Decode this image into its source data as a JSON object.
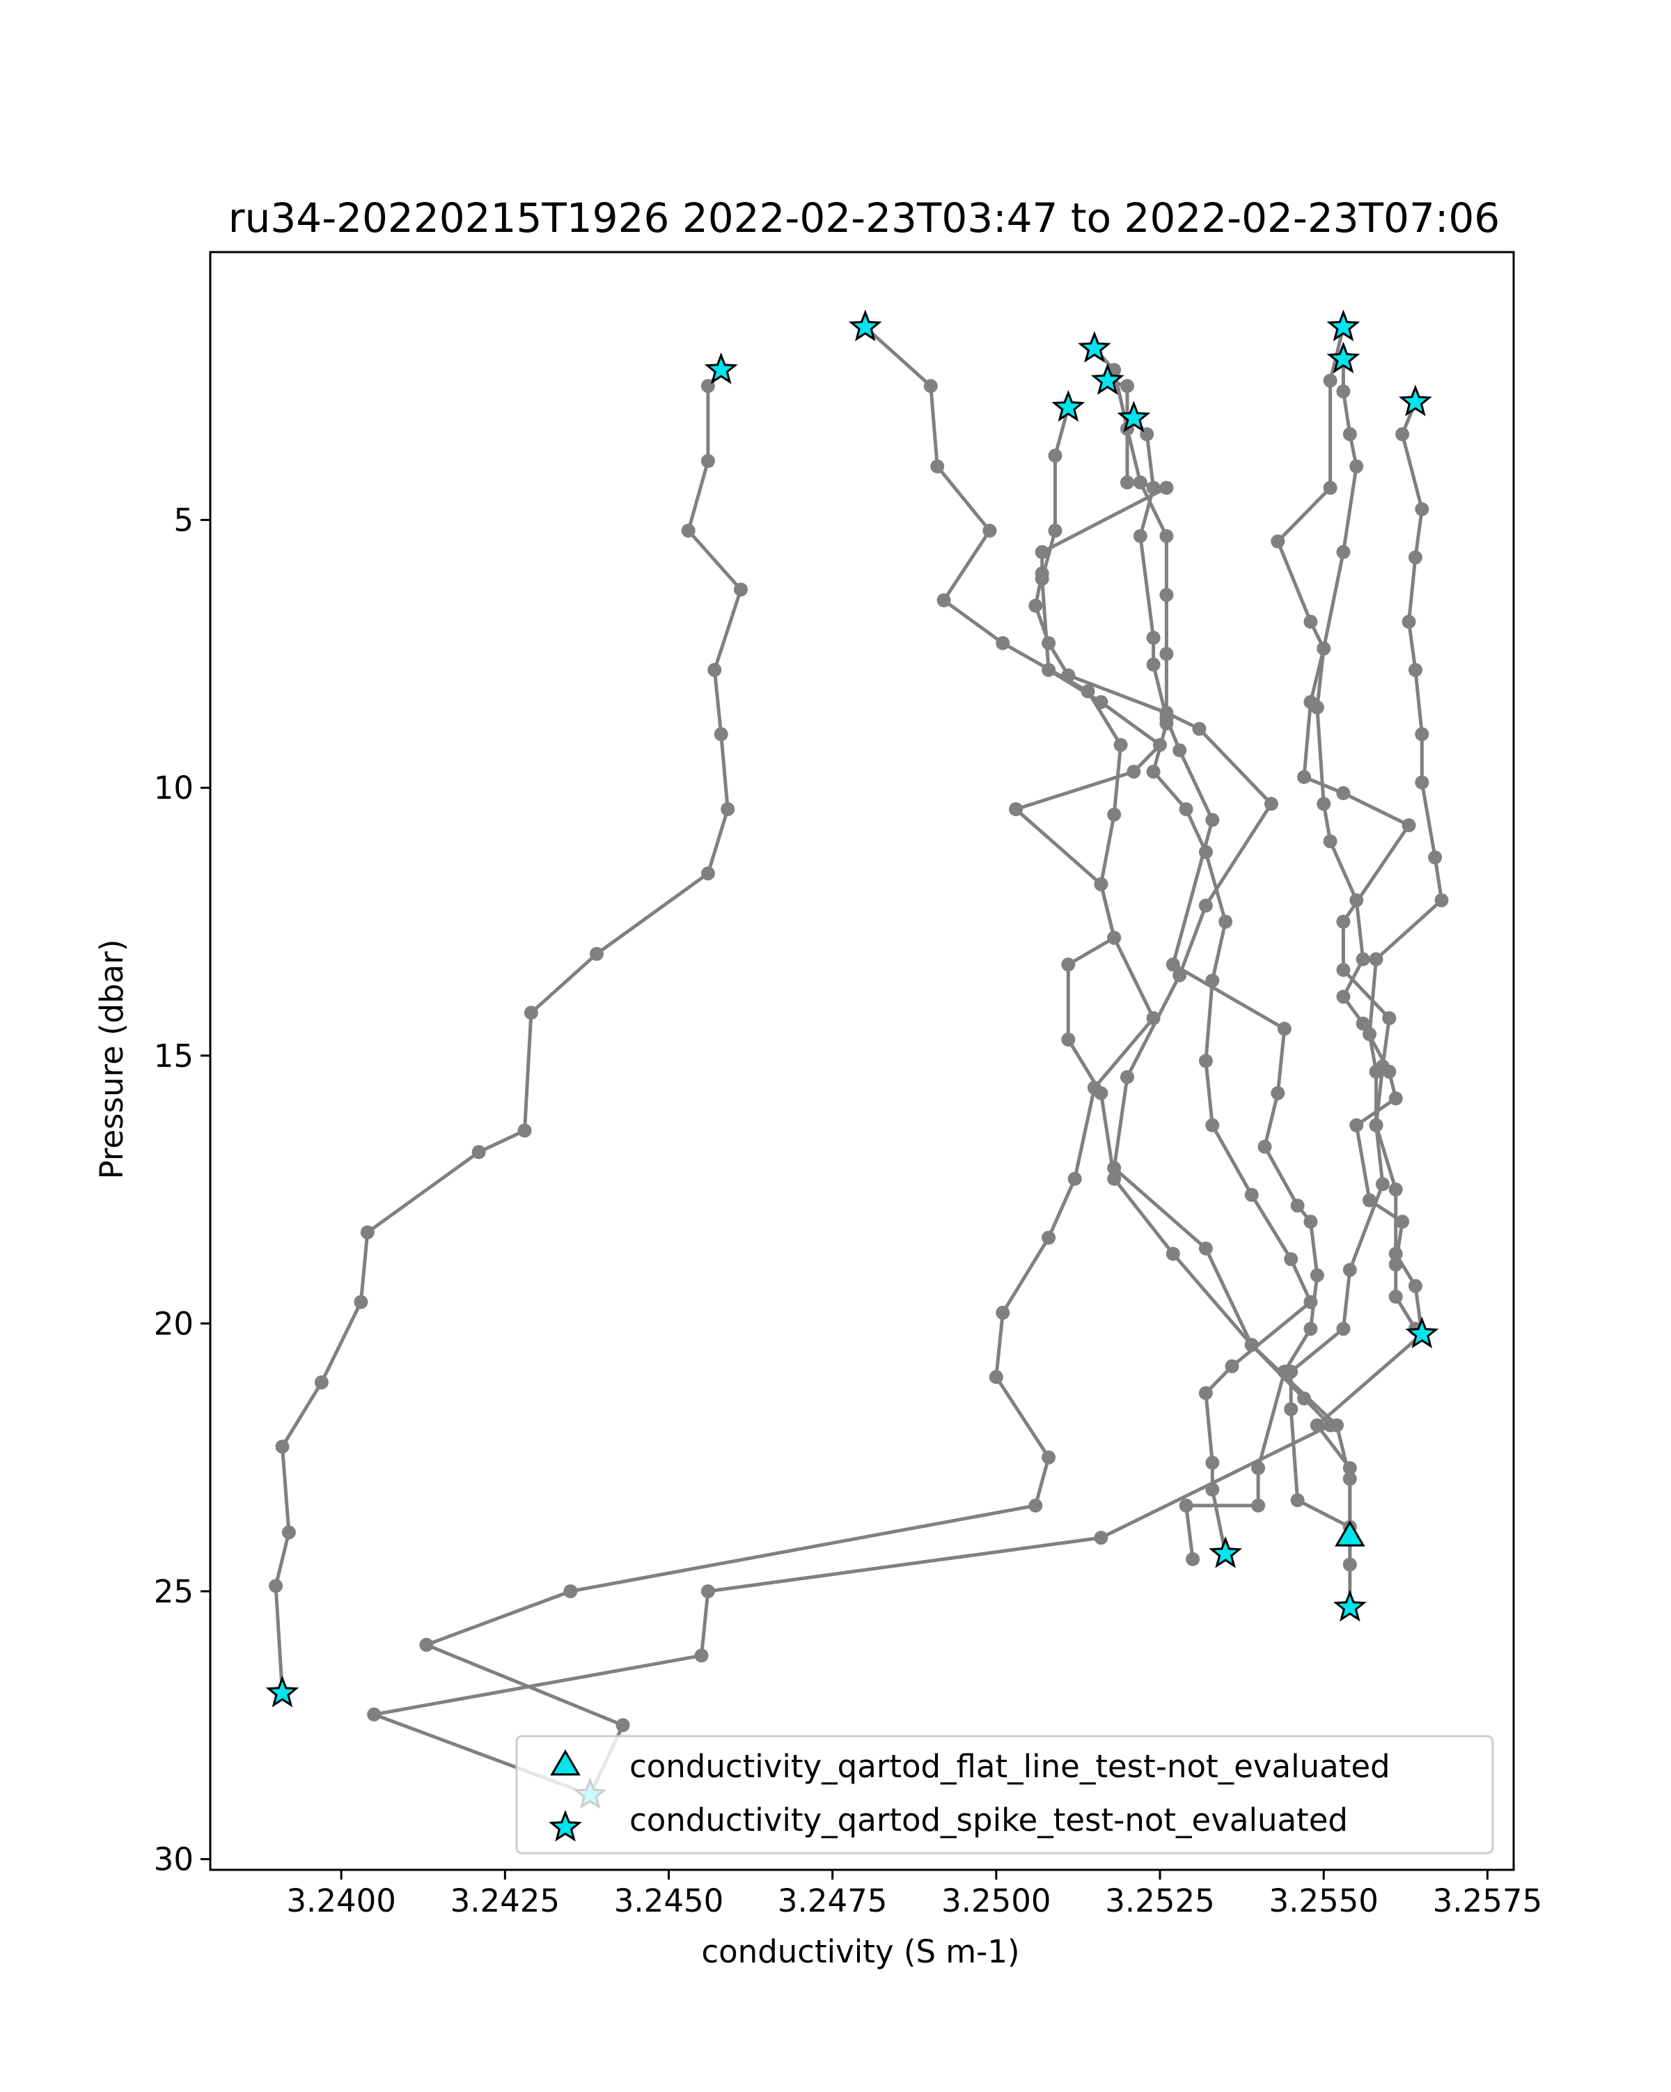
{
  "chart_data": {
    "type": "line",
    "title": "ru34-20220215T1926 2022-02-23T03:47 to 2022-02-23T07:06",
    "xlabel": "conductivity (S m-1)",
    "ylabel": "Pressure (dbar)",
    "xlim": [
      3.238,
      3.2579
    ],
    "ylim": [
      30.2,
      0.0
    ],
    "y_inverted": true,
    "grid": false,
    "legend_position": "lower-right",
    "x_ticks": [
      3.24,
      3.2425,
      3.245,
      3.2475,
      3.25,
      3.2525,
      3.255,
      3.2575
    ],
    "x_tick_labels": [
      "3.2400",
      "3.2425",
      "3.2450",
      "3.2475",
      "3.2500",
      "3.2525",
      "3.2550",
      "3.2575"
    ],
    "y_ticks": [
      5,
      10,
      15,
      20,
      25,
      30
    ],
    "y_tick_labels": [
      "5",
      "10",
      "15",
      "20",
      "25",
      "30"
    ],
    "colors": {
      "line": "#808080",
      "marker": "#808080",
      "flag_fill": "#00e5ee",
      "flag_edge": "#000000",
      "axes": "#000000",
      "legend_border": "#cccccc"
    },
    "series": [
      {
        "points": [
          [
            3.2458,
            2.2
          ],
          [
            3.2456,
            2.5
          ],
          [
            3.2456,
            3.9
          ],
          [
            3.2453,
            5.2
          ],
          [
            3.2461,
            6.3
          ],
          [
            3.2457,
            7.8
          ],
          [
            3.2458,
            9.0
          ],
          [
            3.2459,
            10.4
          ],
          [
            3.2456,
            11.6
          ],
          [
            3.2439,
            13.1
          ],
          [
            3.2429,
            14.2
          ],
          [
            3.2428,
            16.4
          ],
          [
            3.2421,
            16.8
          ],
          [
            3.2404,
            18.3
          ],
          [
            3.2403,
            19.6
          ],
          [
            3.2397,
            21.1
          ],
          [
            3.2391,
            22.3
          ],
          [
            3.2392,
            23.9
          ],
          [
            3.239,
            24.9
          ],
          [
            3.2391,
            26.9
          ]
        ]
      },
      {
        "points": [
          [
            3.248,
            1.4
          ],
          [
            3.249,
            2.5
          ],
          [
            3.2491,
            4.0
          ],
          [
            3.2499,
            5.2
          ],
          [
            3.2492,
            6.5
          ],
          [
            3.2501,
            7.3
          ],
          [
            3.2514,
            8.2
          ],
          [
            3.2519,
            9.2
          ],
          [
            3.2518,
            10.5
          ],
          [
            3.2516,
            11.8
          ],
          [
            3.2518,
            12.8
          ],
          [
            3.2524,
            14.3
          ],
          [
            3.2515,
            15.6
          ],
          [
            3.2512,
            17.3
          ],
          [
            3.2508,
            18.4
          ],
          [
            3.2501,
            19.8
          ],
          [
            3.25,
            21.0
          ],
          [
            3.2508,
            22.5
          ],
          [
            3.2506,
            23.4
          ],
          [
            3.2435,
            25.0
          ],
          [
            3.2413,
            26.0
          ],
          [
            3.2443,
            27.5
          ],
          [
            3.2438,
            28.8
          ]
        ]
      },
      {
        "points": [
          [
            3.2515,
            1.8
          ],
          [
            3.2518,
            2.2
          ],
          [
            3.252,
            3.3
          ],
          [
            3.2522,
            4.3
          ],
          [
            3.2526,
            5.3
          ],
          [
            3.2526,
            6.4
          ],
          [
            3.2526,
            7.5
          ],
          [
            3.2526,
            8.8
          ],
          [
            3.2524,
            9.7
          ],
          [
            3.2529,
            10.4
          ],
          [
            3.2532,
            11.2
          ],
          [
            3.2535,
            12.5
          ],
          [
            3.2533,
            13.6
          ],
          [
            3.2532,
            15.1
          ],
          [
            3.2533,
            16.3
          ],
          [
            3.2539,
            17.6
          ],
          [
            3.2545,
            18.8
          ],
          [
            3.2548,
            19.6
          ],
          [
            3.2536,
            20.8
          ],
          [
            3.2532,
            21.3
          ],
          [
            3.2533,
            22.6
          ],
          [
            3.2533,
            23.1
          ],
          [
            3.2535,
            24.3
          ]
        ]
      },
      {
        "points": [
          [
            3.2517,
            2.4
          ],
          [
            3.252,
            2.5
          ],
          [
            3.252,
            4.3
          ],
          [
            3.2526,
            4.4
          ],
          [
            3.2507,
            5.6
          ],
          [
            3.2507,
            6.0
          ],
          [
            3.2506,
            6.6
          ],
          [
            3.2508,
            7.3
          ],
          [
            3.2511,
            7.9
          ],
          [
            3.2526,
            8.6
          ],
          [
            3.2531,
            8.9
          ],
          [
            3.2542,
            10.3
          ],
          [
            3.2532,
            12.2
          ],
          [
            3.2528,
            13.5
          ],
          [
            3.252,
            15.4
          ],
          [
            3.2518,
            17.1
          ],
          [
            3.2532,
            18.6
          ],
          [
            3.2539,
            20.4
          ],
          [
            3.2547,
            21.4
          ],
          [
            3.2551,
            21.9
          ],
          [
            3.2516,
            24.0
          ],
          [
            3.2456,
            25.0
          ],
          [
            3.2455,
            26.2
          ],
          [
            3.2405,
            27.3
          ],
          [
            3.2438,
            28.8
          ]
        ]
      },
      {
        "points": [
          [
            3.2511,
            2.9
          ],
          [
            3.2509,
            3.8
          ],
          [
            3.2509,
            5.2
          ],
          [
            3.2507,
            6.1
          ],
          [
            3.2508,
            7.8
          ],
          [
            3.2516,
            8.4
          ],
          [
            3.2525,
            9.2
          ],
          [
            3.2521,
            9.7
          ],
          [
            3.2503,
            10.4
          ],
          [
            3.2516,
            11.8
          ],
          [
            3.2518,
            12.8
          ],
          [
            3.2511,
            13.3
          ],
          [
            3.2511,
            14.7
          ],
          [
            3.2516,
            15.7
          ],
          [
            3.2518,
            17.3
          ],
          [
            3.2527,
            18.7
          ],
          [
            3.2539,
            20.4
          ],
          [
            3.2552,
            21.9
          ],
          [
            3.2554,
            22.9
          ],
          [
            3.2554,
            24.5
          ]
        ]
      },
      {
        "points": [
          [
            3.2521,
            3.1
          ],
          [
            3.2523,
            3.4
          ],
          [
            3.2524,
            4.4
          ],
          [
            3.2522,
            5.3
          ],
          [
            3.2524,
            7.2
          ],
          [
            3.2524,
            7.7
          ],
          [
            3.2526,
            8.7
          ],
          [
            3.2528,
            9.3
          ],
          [
            3.2533,
            10.6
          ],
          [
            3.2527,
            13.3
          ],
          [
            3.2544,
            14.5
          ],
          [
            3.2543,
            15.7
          ],
          [
            3.2541,
            16.7
          ],
          [
            3.2546,
            17.8
          ],
          [
            3.2548,
            18.1
          ],
          [
            3.2549,
            19.1
          ],
          [
            3.2548,
            20.1
          ],
          [
            3.2544,
            20.9
          ],
          [
            3.254,
            22.7
          ],
          [
            3.254,
            23.4
          ],
          [
            3.2529,
            23.4
          ],
          [
            3.253,
            24.4
          ]
        ]
      },
      {
        "points": [
          [
            3.2553,
            1.4
          ],
          [
            3.2551,
            2.4
          ],
          [
            3.2551,
            4.4
          ],
          [
            3.2543,
            5.4
          ],
          [
            3.2548,
            6.9
          ],
          [
            3.255,
            7.4
          ],
          [
            3.2548,
            8.4
          ],
          [
            3.2547,
            9.8
          ],
          [
            3.2553,
            10.1
          ],
          [
            3.2563,
            10.7
          ],
          [
            3.2553,
            12.5
          ],
          [
            3.2553,
            13.4
          ],
          [
            3.256,
            14.3
          ],
          [
            3.2559,
            15.2
          ],
          [
            3.2558,
            16.3
          ],
          [
            3.2559,
            17.4
          ],
          [
            3.2554,
            19.0
          ],
          [
            3.2553,
            20.1
          ],
          [
            3.2545,
            20.9
          ],
          [
            3.2545,
            21.6
          ],
          [
            3.2546,
            23.3
          ],
          [
            3.2554,
            23.8
          ]
        ]
      },
      {
        "points": [
          [
            3.2553,
            2.0
          ],
          [
            3.2553,
            2.6
          ],
          [
            3.2554,
            3.4
          ],
          [
            3.2555,
            4.0
          ],
          [
            3.2553,
            5.6
          ],
          [
            3.255,
            7.4
          ],
          [
            3.2549,
            8.5
          ],
          [
            3.255,
            10.3
          ],
          [
            3.2551,
            11.0
          ],
          [
            3.2555,
            12.1
          ],
          [
            3.2556,
            13.2
          ],
          [
            3.2553,
            13.9
          ],
          [
            3.2556,
            14.4
          ],
          [
            3.256,
            15.3
          ],
          [
            3.2561,
            15.8
          ],
          [
            3.2555,
            16.3
          ],
          [
            3.2557,
            17.7
          ],
          [
            3.2562,
            18.1
          ],
          [
            3.2561,
            18.9
          ],
          [
            3.2561,
            19.5
          ],
          [
            3.2564,
            20.1
          ]
        ]
      },
      {
        "points": [
          [
            3.2564,
            2.8
          ],
          [
            3.2562,
            3.4
          ],
          [
            3.2565,
            4.8
          ],
          [
            3.2564,
            5.7
          ],
          [
            3.2563,
            6.9
          ],
          [
            3.2564,
            7.8
          ],
          [
            3.2565,
            9.0
          ],
          [
            3.2565,
            9.9
          ],
          [
            3.2567,
            11.3
          ],
          [
            3.2568,
            12.1
          ],
          [
            3.2558,
            13.2
          ],
          [
            3.2557,
            14.6
          ],
          [
            3.2558,
            15.3
          ],
          [
            3.2558,
            16.3
          ],
          [
            3.2561,
            17.5
          ],
          [
            3.2561,
            18.7
          ],
          [
            3.2564,
            19.3
          ],
          [
            3.2565,
            20.2
          ],
          [
            3.2549,
            21.9
          ],
          [
            3.2554,
            22.7
          ],
          [
            3.2554,
            24.0
          ],
          [
            3.2554,
            25.3
          ]
        ]
      }
    ],
    "flags": {
      "flat_line": [
        [
          3.2554,
          24.0
        ]
      ],
      "spike": [
        [
          3.2458,
          2.2
        ],
        [
          3.248,
          1.4
        ],
        [
          3.2515,
          1.8
        ],
        [
          3.2517,
          2.4
        ],
        [
          3.2511,
          2.9
        ],
        [
          3.2521,
          3.1
        ],
        [
          3.2553,
          1.4
        ],
        [
          3.2553,
          2.0
        ],
        [
          3.2564,
          2.8
        ],
        [
          3.2391,
          26.9
        ],
        [
          3.2438,
          28.8
        ],
        [
          3.2535,
          24.3
        ],
        [
          3.2554,
          25.3
        ],
        [
          3.2565,
          20.2
        ]
      ]
    },
    "legend": [
      {
        "marker": "triangle",
        "label": "conductivity_qartod_flat_line_test-not_evaluated"
      },
      {
        "marker": "star",
        "label": "conductivity_qartod_spike_test-not_evaluated"
      }
    ]
  }
}
